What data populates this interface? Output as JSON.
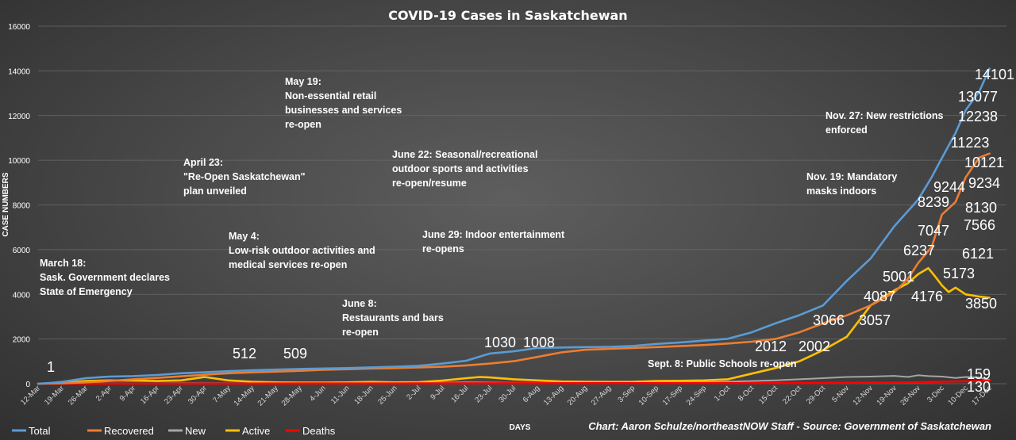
{
  "chart_data": {
    "type": "line",
    "title": "COVID-19 Cases in Saskatchewan",
    "xlabel": "DAYS",
    "ylabel": "CASE NUMBERS",
    "ylim": [
      0,
      16000
    ],
    "yticks": [
      0,
      2000,
      4000,
      6000,
      8000,
      10000,
      12000,
      14000,
      16000
    ],
    "grid": true,
    "legend_position": "bottom-left",
    "x_tick_labels": [
      "12-Mar",
      "19-Mar",
      "26-Mar",
      "2-Apr",
      "9-Apr",
      "16-Apr",
      "23-Apr",
      "30-Apr",
      "7-May",
      "14-May",
      "21-May",
      "28-May",
      "4-Jun",
      "11-Jun",
      "18-Jun",
      "25-Jun",
      "2-Jul",
      "9-Jul",
      "16-Jul",
      "23-Jul",
      "30-Jul",
      "6-Aug",
      "13-Aug",
      "20-Aug",
      "27-Aug",
      "3-Sep",
      "10-Sep",
      "17-Sep",
      "24-Sep",
      "1-Oct",
      "8-Oct",
      "15-Oct",
      "22-Oct",
      "29-Oct",
      "5-Nov",
      "12-Nov",
      "19-Nov",
      "26-Nov",
      "3-Dec",
      "10-Dec",
      "17-Dec"
    ],
    "series": [
      {
        "name": "Total",
        "color": "#5b9bd5",
        "x": [
          0,
          4,
          7,
          14,
          21,
          28,
          35,
          42,
          49,
          56,
          63,
          70,
          77,
          84,
          91,
          98,
          105,
          112,
          119,
          126,
          133,
          140,
          147,
          154,
          161,
          168,
          175,
          182,
          189,
          196,
          203,
          210,
          217,
          224,
          231,
          238,
          245,
          252,
          259,
          263,
          266,
          270,
          273,
          277,
          280
        ],
        "y": [
          1,
          40,
          80,
          250,
          320,
          340,
          390,
          470,
          512,
          560,
          600,
          630,
          660,
          680,
          700,
          730,
          760,
          800,
          900,
          1030,
          1350,
          1450,
          1600,
          1620,
          1640,
          1650,
          1690,
          1780,
          1850,
          1930,
          2012,
          2300,
          2700,
          3066,
          3500,
          4600,
          5600,
          7047,
          8239,
          9244,
          10100,
          11223,
          12238,
          13077,
          14101
        ]
      },
      {
        "name": "Recovered",
        "color": "#ed7d31",
        "x": [
          0,
          7,
          14,
          21,
          28,
          35,
          42,
          49,
          56,
          63,
          70,
          77,
          84,
          91,
          98,
          105,
          112,
          119,
          126,
          133,
          140,
          147,
          154,
          161,
          168,
          175,
          182,
          189,
          196,
          203,
          210,
          217,
          224,
          231,
          238,
          245,
          252,
          256,
          259,
          263,
          266,
          270,
          273,
          277,
          280
        ],
        "y": [
          0,
          20,
          60,
          120,
          200,
          260,
          330,
          400,
          470,
          509,
          540,
          580,
          620,
          650,
          680,
          700,
          730,
          760,
          820,
          900,
          1008,
          1200,
          1400,
          1520,
          1560,
          1600,
          1640,
          1680,
          1730,
          1800,
          1880,
          2002,
          2300,
          2700,
          3057,
          3500,
          4087,
          4700,
          5400,
          6121,
          7566,
          8130,
          9234,
          10121,
          10300
        ]
      },
      {
        "name": "New",
        "color": "#a5a5a5",
        "x": [
          0,
          14,
          28,
          42,
          56,
          70,
          84,
          98,
          112,
          126,
          140,
          154,
          168,
          182,
          196,
          210,
          217,
          224,
          231,
          238,
          245,
          252,
          256,
          259,
          262,
          266,
          270,
          273,
          277,
          280
        ],
        "y": [
          1,
          20,
          15,
          30,
          20,
          25,
          20,
          20,
          30,
          60,
          40,
          30,
          50,
          60,
          70,
          120,
          150,
          200,
          250,
          300,
          320,
          350,
          300,
          380,
          340,
          320,
          260,
          300,
          280,
          159
        ]
      },
      {
        "name": "Active",
        "color": "#ffc000",
        "x": [
          0,
          7,
          14,
          21,
          28,
          35,
          42,
          49,
          56,
          63,
          70,
          77,
          84,
          91,
          98,
          105,
          112,
          119,
          126,
          130,
          133,
          140,
          147,
          154,
          161,
          168,
          175,
          182,
          189,
          196,
          203,
          210,
          217,
          224,
          231,
          238,
          245,
          252,
          256,
          259,
          262,
          264,
          266,
          268,
          270,
          273,
          277,
          280
        ],
        "y": [
          1,
          30,
          120,
          150,
          140,
          120,
          150,
          300,
          150,
          90,
          60,
          50,
          50,
          60,
          80,
          60,
          70,
          140,
          250,
          300,
          280,
          200,
          150,
          100,
          90,
          80,
          90,
          120,
          130,
          150,
          200,
          450,
          700,
          1000,
          1500,
          2100,
          3500,
          4176,
          4500,
          4900,
          5173,
          4800,
          4400,
          4100,
          4300,
          4000,
          3900,
          3850
        ]
      },
      {
        "name": "Deaths",
        "color": "#ff0000",
        "x": [
          0,
          56,
          112,
          168,
          224,
          252,
          266,
          280
        ],
        "y": [
          0,
          6,
          15,
          24,
          30,
          50,
          90,
          130
        ]
      }
    ],
    "data_labels": [
      {
        "text": "1",
        "x": 2,
        "y": 1
      },
      {
        "text": "512",
        "x": 49,
        "y": 512
      },
      {
        "text": "509",
        "x": 63,
        "y": 509
      },
      {
        "text": "1030",
        "x": 126,
        "y": 1030
      },
      {
        "text": "1008",
        "x": 140,
        "y": 1008
      },
      {
        "text": "2012",
        "x": 203,
        "y": 2012
      },
      {
        "text": "2002",
        "x": 217,
        "y": 2002
      },
      {
        "text": "3066",
        "x": 224,
        "y": 3066
      },
      {
        "text": "3057",
        "x": 231,
        "y": 3057
      },
      {
        "text": "4087",
        "x": 245,
        "y": 4087
      },
      {
        "text": "4176",
        "x": 252,
        "y": 4176
      },
      {
        "text": "5001",
        "x": 245,
        "y": 5001
      },
      {
        "text": "5173",
        "x": 262,
        "y": 5173
      },
      {
        "text": "6237",
        "x": 252,
        "y": 6237
      },
      {
        "text": "6121",
        "x": 266,
        "y": 6121
      },
      {
        "text": "7047",
        "x": 252,
        "y": 7047
      },
      {
        "text": "7566",
        "x": 266,
        "y": 7566
      },
      {
        "text": "8239",
        "x": 259,
        "y": 8239
      },
      {
        "text": "8130",
        "x": 270,
        "y": 8130
      },
      {
        "text": "9244",
        "x": 263,
        "y": 9244
      },
      {
        "text": "9234",
        "x": 273,
        "y": 9234
      },
      {
        "text": "10121",
        "x": 277,
        "y": 10121
      },
      {
        "text": "11223",
        "x": 270,
        "y": 11223
      },
      {
        "text": "12238",
        "x": 273,
        "y": 12238
      },
      {
        "text": "13077",
        "x": 277,
        "y": 13077
      },
      {
        "text": "14101",
        "x": 280,
        "y": 14101
      },
      {
        "text": "3850",
        "x": 280,
        "y": 3850
      },
      {
        "text": "159",
        "x": 280,
        "y": 159
      },
      {
        "text": "130",
        "x": 280,
        "y": 130
      }
    ],
    "annotations": [
      {
        "lines": [
          "March 18:",
          "Sask. Government declares",
          "State of Emergency"
        ]
      },
      {
        "lines": [
          "April 23:",
          "\"Re-Open Saskatchewan\"",
          "plan unveiled"
        ]
      },
      {
        "lines": [
          "May 4:",
          "Low-risk outdoor activities and",
          "medical services re-open"
        ]
      },
      {
        "lines": [
          "May 19:",
          "Non-essential retail",
          "businesses and services",
          "re-open"
        ]
      },
      {
        "lines": [
          "June 8:",
          "Restaurants and bars",
          "re-open"
        ]
      },
      {
        "lines": [
          "June 22: Seasonal/recreational",
          "outdoor sports and activities",
          "re-open/resume"
        ]
      },
      {
        "lines": [
          "June 29: Indoor entertainment",
          "re-opens"
        ]
      },
      {
        "lines": [
          "Sept. 8: Public Schools re-open"
        ]
      },
      {
        "lines": [
          "Nov. 19: Mandatory",
          "masks indoors"
        ]
      },
      {
        "lines": [
          "Nov. 27: New restrictions",
          "enforced"
        ]
      }
    ],
    "credit": "Chart: Aaron Schulze/northeastNOW Staff - Source: Government of Saskatchewan"
  }
}
